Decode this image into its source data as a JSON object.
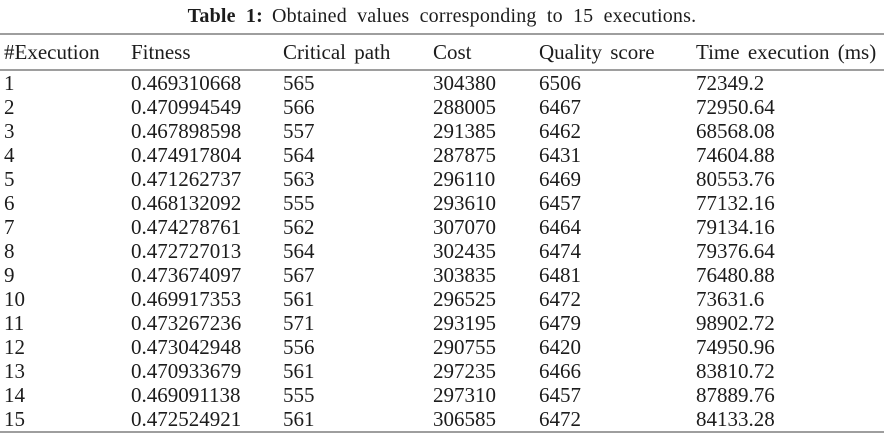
{
  "page": {
    "background": "#ffffff",
    "text_color": "#1c1c1c",
    "rule_color": "#9e9e9e"
  },
  "caption": {
    "label": "Table 1:",
    "text": "Obtained values corresponding to 15 executions."
  },
  "table": {
    "columns": [
      "#Execution",
      "Fitness",
      "Critical path",
      "Cost",
      "Quality score",
      "Time execution (ms)"
    ],
    "rows": [
      [
        "1",
        "0.469310668",
        "565",
        "304380",
        "6506",
        "72349.2"
      ],
      [
        "2",
        "0.470994549",
        "566",
        "288005",
        "6467",
        "72950.64"
      ],
      [
        "3",
        "0.467898598",
        "557",
        "291385",
        "6462",
        "68568.08"
      ],
      [
        "4",
        "0.474917804",
        "564",
        "287875",
        "6431",
        "74604.88"
      ],
      [
        "5",
        "0.471262737",
        "563",
        "296110",
        "6469",
        "80553.76"
      ],
      [
        "6",
        "0.468132092",
        "555",
        "293610",
        "6457",
        "77132.16"
      ],
      [
        "7",
        "0.474278761",
        "562",
        "307070",
        "6464",
        "79134.16"
      ],
      [
        "8",
        "0.472727013",
        "564",
        "302435",
        "6474",
        "79376.64"
      ],
      [
        "9",
        "0.473674097",
        "567",
        "303835",
        "6481",
        "76480.88"
      ],
      [
        "10",
        "0.469917353",
        "561",
        "296525",
        "6472",
        "73631.6"
      ],
      [
        "11",
        "0.473267236",
        "571",
        "293195",
        "6479",
        "98902.72"
      ],
      [
        "12",
        "0.473042948",
        "556",
        "290755",
        "6420",
        "74950.96"
      ],
      [
        "13",
        "0.470933679",
        "561",
        "297235",
        "6466",
        "83810.72"
      ],
      [
        "14",
        "0.469091138",
        "555",
        "297310",
        "6457",
        "87889.76"
      ],
      [
        "15",
        "0.472524921",
        "561",
        "306585",
        "6472",
        "84133.28"
      ]
    ]
  }
}
